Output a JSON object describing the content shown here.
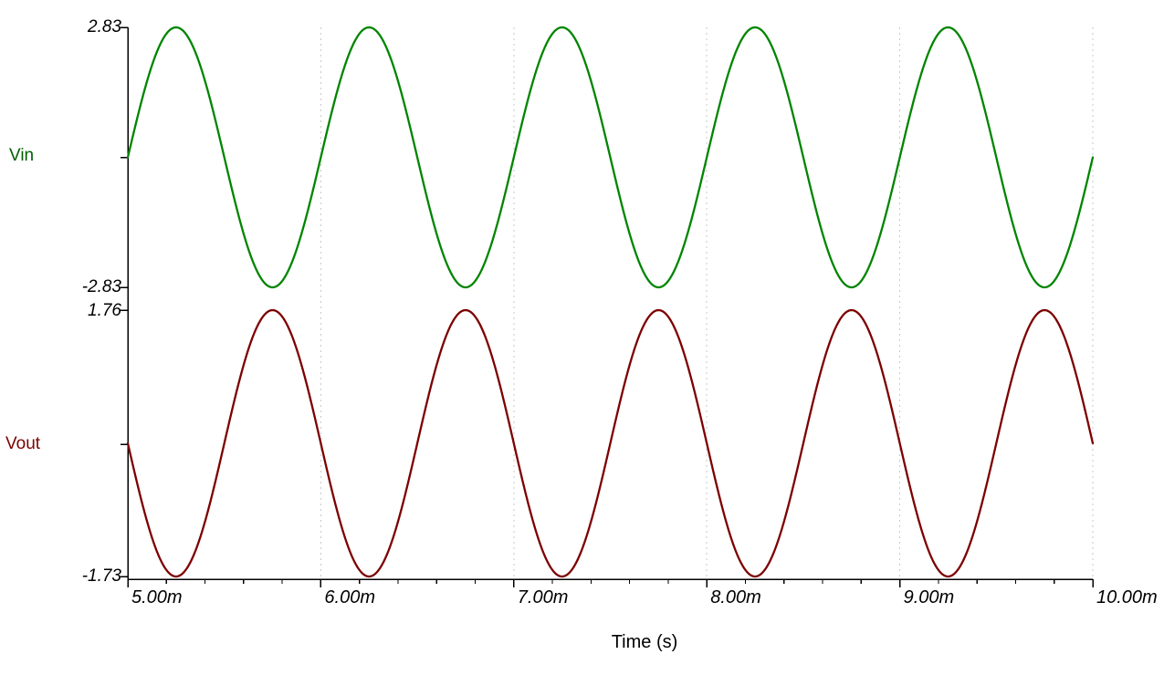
{
  "chart_data": {
    "type": "line",
    "background": "#ffffff",
    "axis_color": "#000000",
    "grid_color": "#c9c9c9",
    "x_axis": {
      "label": "Time (s)",
      "range_s": [
        0.005,
        0.01
      ],
      "minor_divisions": 5,
      "gridlines_at_s": [
        0.006,
        0.007,
        0.008,
        0.009,
        0.01
      ],
      "ticks": [
        {
          "value_s": 0.005,
          "label": "5.00m"
        },
        {
          "value_s": 0.006,
          "label": "6.00m"
        },
        {
          "value_s": 0.007,
          "label": "7.00m"
        },
        {
          "value_s": 0.008,
          "label": "8.00m"
        },
        {
          "value_s": 0.009,
          "label": "9.00m"
        },
        {
          "value_s": 0.01,
          "label": "10.00m"
        }
      ]
    },
    "plots": [
      {
        "label": "Vin",
        "color": "#008500",
        "label_color": "#006000",
        "ylim": [
          -2.83,
          2.83
        ],
        "y_ticks": [
          {
            "value": 2.83,
            "label": "2.83"
          },
          {
            "value": -2.83,
            "label": "-2.83"
          }
        ],
        "signal": {
          "shape": "sine",
          "amplitude": 2.83,
          "dc_offset": 0,
          "frequency_hz": 1000,
          "phase_deg_at_window_start": 0,
          "peak": 2.83,
          "trough": -2.83,
          "period_ms": 1.0,
          "cycles_shown": 5
        }
      },
      {
        "label": "Vout",
        "color": "#7d0000",
        "label_color": "#7d0000",
        "ylim": [
          -1.73,
          1.76
        ],
        "y_ticks": [
          {
            "value": 1.76,
            "label": "1.76"
          },
          {
            "value": -1.73,
            "label": "-1.73"
          }
        ],
        "signal": {
          "shape": "sine",
          "amplitude": 1.745,
          "dc_offset": 0.015,
          "frequency_hz": 1000,
          "phase_deg_at_window_start": 180,
          "peak": 1.76,
          "trough": -1.73,
          "period_ms": 1.0,
          "cycles_shown": 5
        }
      }
    ]
  }
}
